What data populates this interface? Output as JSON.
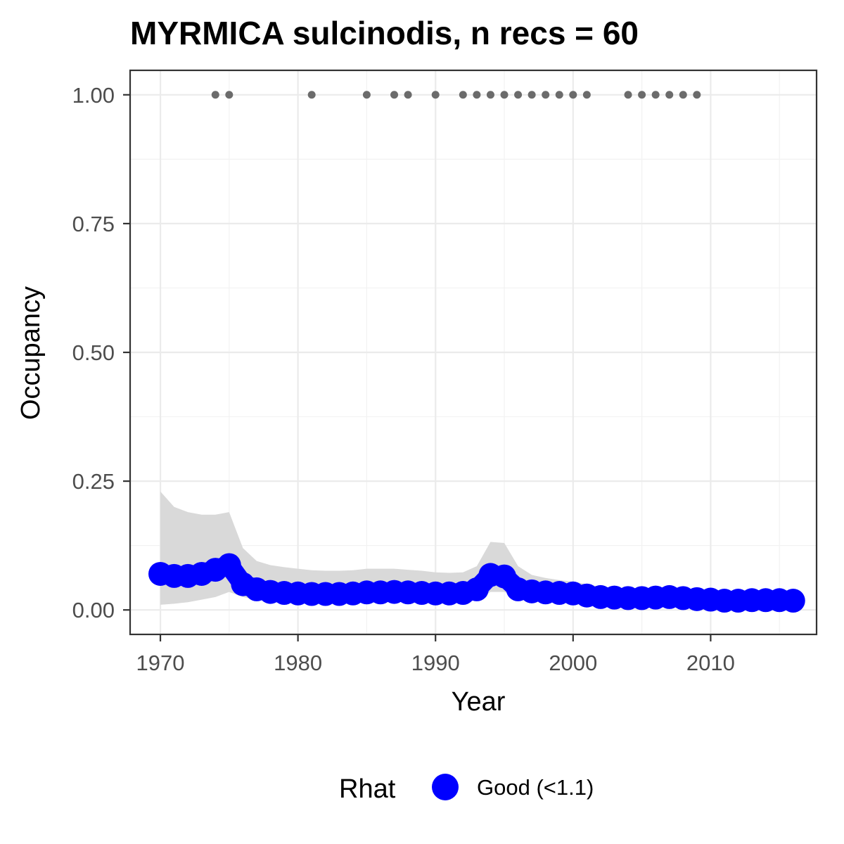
{
  "chart_data": {
    "type": "line",
    "title": "MYRMICA sulcinodis, n recs = 60",
    "xlabel": "Year",
    "ylabel": "Occupancy",
    "xlim": [
      1967.8,
      2017.7
    ],
    "ylim": [
      -0.0475,
      1.0475
    ],
    "x_ticks": [
      1970,
      1980,
      1990,
      2000,
      2010
    ],
    "x_tick_labels": [
      "1970",
      "1980",
      "1990",
      "2000",
      "2010"
    ],
    "y_ticks": [
      0,
      0.25,
      0.5,
      0.75,
      1.0
    ],
    "y_tick_labels": [
      "0.00",
      "0.25",
      "0.50",
      "0.75",
      "1.00"
    ],
    "grid": true,
    "legend": {
      "position": "bottom",
      "title": "Rhat",
      "entries": [
        {
          "label": "Good (<1.1)",
          "color": "#0000ff"
        }
      ]
    },
    "colors": {
      "estimate": "#0000ff",
      "ribbon": "#d9d9d9",
      "records": "#6b6b6b"
    },
    "series": [
      {
        "name": "Good (<1.1)",
        "x": [
          1970,
          1971,
          1972,
          1973,
          1974,
          1975,
          1976,
          1977,
          1978,
          1979,
          1980,
          1981,
          1982,
          1983,
          1984,
          1985,
          1986,
          1987,
          1988,
          1989,
          1990,
          1991,
          1992,
          1993,
          1994,
          1995,
          1996,
          1997,
          1998,
          1999,
          2000,
          2001,
          2002,
          2003,
          2004,
          2005,
          2006,
          2007,
          2008,
          2009,
          2010,
          2011,
          2012,
          2013,
          2014,
          2015,
          2016
        ],
        "y": [
          0.07,
          0.066,
          0.066,
          0.07,
          0.078,
          0.087,
          0.05,
          0.04,
          0.035,
          0.033,
          0.032,
          0.031,
          0.031,
          0.031,
          0.032,
          0.034,
          0.034,
          0.035,
          0.034,
          0.033,
          0.032,
          0.032,
          0.033,
          0.04,
          0.068,
          0.065,
          0.04,
          0.036,
          0.034,
          0.033,
          0.032,
          0.028,
          0.025,
          0.024,
          0.023,
          0.023,
          0.024,
          0.025,
          0.023,
          0.021,
          0.02,
          0.018,
          0.018,
          0.019,
          0.019,
          0.019,
          0.018
        ],
        "lower": [
          0.01,
          0.012,
          0.015,
          0.02,
          0.025,
          0.035,
          0.025,
          0.02,
          0.018,
          0.017,
          0.016,
          0.016,
          0.016,
          0.016,
          0.017,
          0.018,
          0.018,
          0.018,
          0.018,
          0.017,
          0.016,
          0.016,
          0.017,
          0.02,
          0.035,
          0.035,
          0.022,
          0.02,
          0.019,
          0.018,
          0.017,
          0.015,
          0.013,
          0.012,
          0.012,
          0.012,
          0.012,
          0.013,
          0.012,
          0.011,
          0.01,
          0.009,
          0.009,
          0.009,
          0.009,
          0.009,
          0.009
        ],
        "upper": [
          0.23,
          0.2,
          0.19,
          0.185,
          0.185,
          0.19,
          0.12,
          0.095,
          0.087,
          0.083,
          0.08,
          0.077,
          0.076,
          0.076,
          0.077,
          0.08,
          0.08,
          0.08,
          0.078,
          0.076,
          0.073,
          0.072,
          0.073,
          0.085,
          0.132,
          0.13,
          0.085,
          0.068,
          0.062,
          0.058,
          0.055,
          0.05,
          0.045,
          0.042,
          0.04,
          0.04,
          0.041,
          0.042,
          0.04,
          0.038,
          0.036,
          0.034,
          0.034,
          0.035,
          0.035,
          0.035,
          0.035
        ]
      },
      {
        "name": "",
        "type": "scatter",
        "x": [
          1974,
          1975,
          1981,
          1985,
          1987,
          1988,
          1990,
          1992,
          1993,
          1994,
          1995,
          1996,
          1997,
          1998,
          1999,
          2000,
          2001,
          2004,
          2005,
          2006,
          2007,
          2008,
          2009
        ],
        "y": [
          1,
          1,
          1,
          1,
          1,
          1,
          1,
          1,
          1,
          1,
          1,
          1,
          1,
          1,
          1,
          1,
          1,
          1,
          1,
          1,
          1,
          1,
          1
        ]
      }
    ]
  }
}
